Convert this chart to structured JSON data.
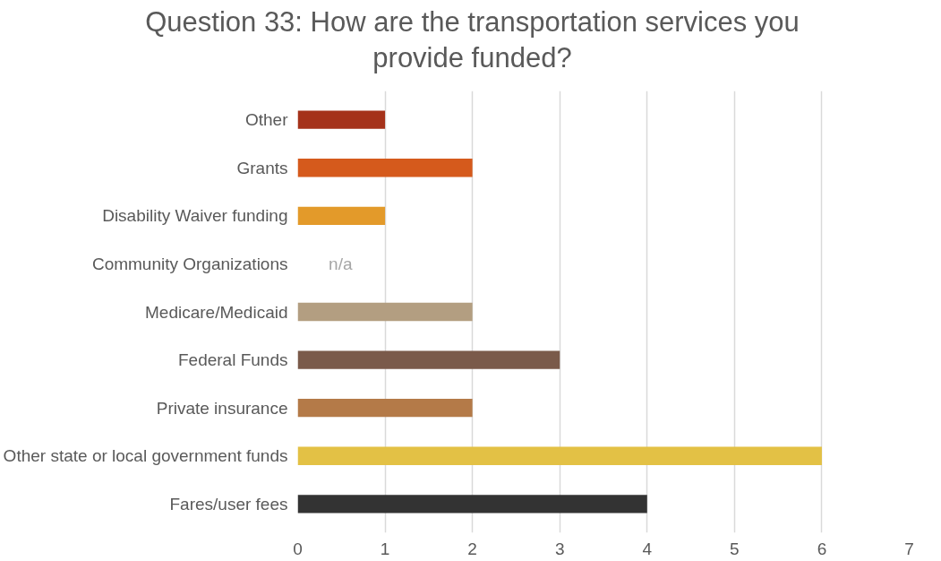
{
  "chart_data": {
    "type": "bar",
    "orientation": "horizontal",
    "title": "Question 33: How are the transportation services you\nprovide funded?",
    "categories": [
      "Other",
      "Grants",
      "Disability Waiver funding",
      "Community Organizations",
      "Medicare/Medicaid",
      "Federal Funds",
      "Private insurance",
      "Other state or local government funds",
      "Fares/user fees"
    ],
    "values": [
      1,
      2,
      1,
      null,
      2,
      3,
      2,
      6,
      4
    ],
    "colors": [
      "#a5321a",
      "#d55a1c",
      "#e39a2a",
      null,
      "#b39e81",
      "#7a5a4a",
      "#b47a48",
      "#e3c145",
      "#333333"
    ],
    "annotations": [
      "n/a"
    ],
    "xlim": [
      0,
      7
    ],
    "xticks": [
      0,
      1,
      2,
      3,
      4,
      5,
      6,
      7
    ],
    "grid": "x"
  }
}
